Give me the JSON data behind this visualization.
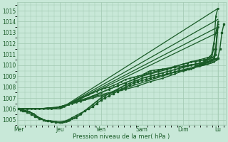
{
  "bg_color": "#c8e8d8",
  "grid_color": "#a0c8b0",
  "line_color": "#1a5c28",
  "text_color": "#1a5c28",
  "xlabel_text": "Pression niveau de la mer( hPa )",
  "ylim": [
    1004.5,
    1015.8
  ],
  "yticks": [
    1005,
    1006,
    1007,
    1008,
    1009,
    1010,
    1011,
    1012,
    1013,
    1014,
    1015
  ],
  "day_labels": [
    "Mer",
    "Jeu",
    "Ven",
    "Sam",
    "Dim",
    "Lu"
  ],
  "day_positions": [
    0.0,
    1.0,
    2.0,
    3.0,
    4.0,
    4.85
  ],
  "xlim": [
    -0.05,
    5.05
  ],
  "lines": [
    {
      "x": [
        0.0,
        0.05,
        0.1,
        0.15,
        0.2,
        0.3,
        0.4,
        0.5,
        0.6,
        0.7,
        0.8,
        0.9,
        1.0,
        1.05,
        1.1,
        1.15,
        1.2,
        1.3,
        1.4,
        1.5,
        1.6,
        1.7,
        1.8,
        1.9,
        2.0,
        2.1,
        2.2,
        2.3,
        2.4,
        2.5,
        2.6,
        2.7,
        2.8,
        2.9,
        3.0,
        3.1,
        3.2,
        3.3,
        3.4,
        3.5,
        3.6,
        3.7,
        3.8,
        3.9,
        4.0,
        4.05,
        4.1,
        4.15,
        4.2,
        4.25,
        4.3,
        4.35,
        4.4,
        4.45,
        4.5,
        4.55,
        4.6,
        4.65,
        4.7,
        4.75,
        4.8,
        4.85,
        4.9,
        4.95,
        5.0
      ],
      "y": [
        1006.0,
        1005.9,
        1005.8,
        1005.8,
        1005.7,
        1005.5,
        1005.3,
        1005.1,
        1005.0,
        1004.9,
        1004.85,
        1004.8,
        1004.8,
        1004.82,
        1004.85,
        1004.9,
        1005.0,
        1005.2,
        1005.4,
        1005.6,
        1005.8,
        1006.0,
        1006.2,
        1006.5,
        1006.8,
        1007.0,
        1007.2,
        1007.4,
        1007.6,
        1007.8,
        1008.0,
        1008.2,
        1008.35,
        1008.5,
        1008.6,
        1008.7,
        1008.8,
        1008.9,
        1009.0,
        1009.1,
        1009.2,
        1009.3,
        1009.4,
        1009.5,
        1009.55,
        1009.6,
        1009.65,
        1009.7,
        1009.75,
        1009.8,
        1009.9,
        1010.0,
        1010.05,
        1010.1,
        1010.15,
        1010.2,
        1010.3,
        1010.4,
        1010.5,
        1010.55,
        1010.6,
        1010.65,
        1011.5,
        1013.0,
        1013.8
      ],
      "lw": 1.0,
      "marker": "s",
      "ms": 1.5
    },
    {
      "x": [
        0.0,
        1.0,
        4.85
      ],
      "y": [
        1006.0,
        1006.0,
        1015.2
      ],
      "lw": 0.9,
      "marker": null,
      "ms": 0
    },
    {
      "x": [
        0.0,
        1.0,
        4.85
      ],
      "y": [
        1006.0,
        1006.0,
        1014.2
      ],
      "lw": 0.9,
      "marker": null,
      "ms": 0
    },
    {
      "x": [
        0.0,
        1.0,
        4.85
      ],
      "y": [
        1006.0,
        1006.0,
        1013.5
      ],
      "lw": 0.9,
      "marker": null,
      "ms": 0
    },
    {
      "x": [
        0.0,
        1.0,
        4.85
      ],
      "y": [
        1006.0,
        1006.0,
        1013.0
      ],
      "lw": 0.9,
      "marker": null,
      "ms": 0
    },
    {
      "x": [
        0.0,
        0.1,
        0.2,
        0.3,
        0.5,
        0.7,
        0.9,
        1.0,
        1.1,
        1.2,
        1.3,
        1.5,
        1.7,
        1.9,
        2.0,
        2.2,
        2.4,
        2.6,
        2.8,
        3.0,
        3.2,
        3.4,
        3.6,
        3.8,
        4.0,
        4.1,
        4.2,
        4.3,
        4.4,
        4.5,
        4.6,
        4.7,
        4.75,
        4.8,
        4.85
      ],
      "y": [
        1006.0,
        1006.0,
        1006.0,
        1006.0,
        1006.0,
        1006.1,
        1006.1,
        1006.2,
        1006.3,
        1006.4,
        1006.5,
        1006.8,
        1007.0,
        1007.3,
        1007.5,
        1007.8,
        1008.1,
        1008.4,
        1008.7,
        1009.0,
        1009.3,
        1009.5,
        1009.7,
        1009.9,
        1010.1,
        1010.2,
        1010.35,
        1010.4,
        1010.5,
        1010.6,
        1010.7,
        1010.8,
        1011.5,
        1014.5,
        1015.2
      ],
      "lw": 1.0,
      "marker": ".",
      "ms": 2.0
    },
    {
      "x": [
        0.0,
        0.1,
        0.2,
        0.4,
        0.6,
        0.8,
        1.0,
        1.1,
        1.2,
        1.4,
        1.6,
        1.8,
        2.0,
        2.2,
        2.4,
        2.6,
        2.8,
        3.0,
        3.2,
        3.4,
        3.6,
        3.8,
        4.0,
        4.1,
        4.2,
        4.3,
        4.4,
        4.5,
        4.55,
        4.6,
        4.65,
        4.7,
        4.75,
        4.8,
        4.85
      ],
      "y": [
        1006.0,
        1006.0,
        1006.0,
        1006.0,
        1006.0,
        1006.0,
        1006.2,
        1006.3,
        1006.4,
        1006.6,
        1006.9,
        1007.2,
        1007.5,
        1007.8,
        1008.1,
        1008.4,
        1008.7,
        1009.0,
        1009.2,
        1009.4,
        1009.6,
        1009.85,
        1010.1,
        1010.2,
        1010.3,
        1010.35,
        1010.4,
        1010.45,
        1010.5,
        1010.6,
        1010.8,
        1011.0,
        1012.0,
        1013.0,
        1013.8
      ],
      "lw": 1.0,
      "marker": ".",
      "ms": 2.0
    },
    {
      "x": [
        0.0,
        0.1,
        0.2,
        0.4,
        0.7,
        0.9,
        1.0,
        1.05,
        1.1,
        1.2,
        1.3,
        1.5,
        1.7,
        1.8,
        1.9,
        2.0,
        2.1,
        2.2,
        2.3,
        2.4,
        2.5,
        2.6,
        2.7,
        2.8,
        2.9,
        3.0,
        3.05,
        3.1,
        3.15,
        3.2,
        3.3,
        3.4,
        3.5,
        3.6,
        3.7,
        3.8,
        3.9,
        4.0,
        4.05,
        4.1,
        4.2,
        4.3,
        4.4,
        4.5,
        4.55,
        4.6,
        4.65,
        4.7,
        4.75,
        4.8,
        4.85
      ],
      "y": [
        1006.0,
        1006.0,
        1006.0,
        1006.0,
        1006.0,
        1006.1,
        1006.15,
        1006.2,
        1006.25,
        1006.4,
        1006.6,
        1007.0,
        1007.3,
        1007.5,
        1007.6,
        1007.8,
        1007.9,
        1008.0,
        1008.15,
        1008.3,
        1008.5,
        1008.7,
        1008.8,
        1008.9,
        1009.0,
        1009.1,
        1009.2,
        1009.3,
        1009.4,
        1009.5,
        1009.55,
        1009.6,
        1009.65,
        1009.7,
        1009.75,
        1009.8,
        1009.85,
        1009.9,
        1009.95,
        1010.0,
        1010.05,
        1010.1,
        1010.15,
        1010.2,
        1010.25,
        1010.3,
        1010.35,
        1010.4,
        1010.5,
        1011.0,
        1013.5
      ],
      "lw": 1.0,
      "marker": ".",
      "ms": 1.8
    },
    {
      "x": [
        0.0,
        0.2,
        0.5,
        0.8,
        1.0,
        1.2,
        1.5,
        1.8,
        2.0,
        2.3,
        2.6,
        2.9,
        3.2,
        3.5,
        3.8,
        4.0,
        4.2,
        4.4,
        4.6,
        4.75,
        4.8,
        4.85
      ],
      "y": [
        1006.0,
        1006.0,
        1006.0,
        1006.0,
        1006.2,
        1006.4,
        1006.7,
        1007.0,
        1007.2,
        1007.5,
        1007.8,
        1008.1,
        1008.5,
        1008.8,
        1009.2,
        1009.5,
        1009.7,
        1009.9,
        1010.1,
        1010.3,
        1011.5,
        1014.0
      ],
      "lw": 1.0,
      "marker": ".",
      "ms": 1.8
    },
    {
      "x": [
        0.0,
        0.5,
        1.0,
        1.5,
        2.0,
        2.5,
        3.0,
        3.5,
        4.0,
        4.4,
        4.7,
        4.85
      ],
      "y": [
        1006.0,
        1006.0,
        1006.2,
        1006.8,
        1007.3,
        1007.8,
        1008.4,
        1009.0,
        1009.6,
        1009.9,
        1010.2,
        1010.5
      ],
      "lw": 0.9,
      "marker": null,
      "ms": 0
    },
    {
      "x": [
        0.0,
        0.05,
        0.1,
        0.15,
        0.2,
        0.25,
        0.3,
        0.35,
        0.4,
        0.45,
        0.5,
        0.55,
        0.6,
        0.65,
        0.7,
        0.75,
        0.8,
        0.85,
        0.9,
        0.95,
        1.0,
        1.05,
        1.1,
        1.15,
        1.2,
        1.25,
        1.3,
        1.35,
        1.4,
        1.5,
        1.6,
        1.7,
        1.8,
        1.9,
        2.0,
        2.1,
        2.2,
        2.3,
        2.4,
        2.5,
        2.6,
        2.7,
        2.8,
        2.9,
        3.0,
        3.1,
        3.2,
        3.3,
        3.4,
        3.5,
        3.6,
        3.7,
        3.8,
        3.9,
        4.0,
        4.1,
        4.2,
        4.3,
        4.4,
        4.5,
        4.55,
        4.6,
        4.65,
        4.7,
        4.75,
        4.8,
        4.85
      ],
      "y": [
        1006.0,
        1005.95,
        1005.9,
        1005.85,
        1005.8,
        1005.75,
        1005.65,
        1005.55,
        1005.45,
        1005.3,
        1005.2,
        1005.1,
        1005.0,
        1004.95,
        1004.92,
        1004.9,
        1004.88,
        1004.85,
        1004.83,
        1004.82,
        1004.8,
        1004.82,
        1004.85,
        1004.88,
        1004.9,
        1005.0,
        1005.1,
        1005.15,
        1005.2,
        1005.5,
        1005.8,
        1006.1,
        1006.4,
        1006.7,
        1007.0,
        1007.2,
        1007.4,
        1007.6,
        1007.8,
        1008.0,
        1008.2,
        1008.35,
        1008.5,
        1008.65,
        1008.8,
        1008.9,
        1009.0,
        1009.1,
        1009.2,
        1009.3,
        1009.4,
        1009.5,
        1009.6,
        1009.7,
        1009.8,
        1009.9,
        1010.0,
        1010.1,
        1010.2,
        1010.3,
        1010.4,
        1010.5,
        1010.6,
        1010.7,
        1010.75,
        1011.5,
        1013.5
      ],
      "lw": 1.2,
      "marker": ".",
      "ms": 2.0
    }
  ]
}
